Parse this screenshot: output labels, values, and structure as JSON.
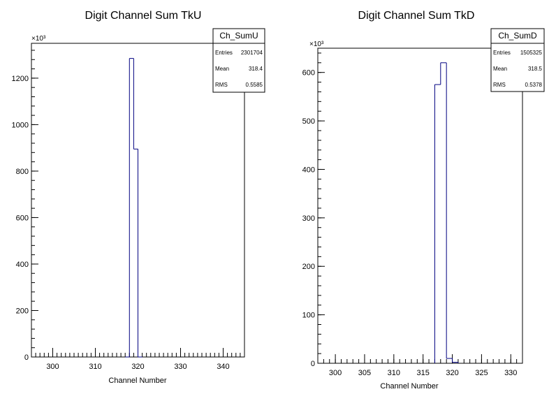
{
  "chart_data": [
    {
      "type": "bar",
      "title": "Digit Channel Sum TkU",
      "xlabel": "Channel Number",
      "ylabel": "",
      "y_multiplier": "×10³",
      "xlim": [
        295,
        345
      ],
      "ylim": [
        0,
        1350
      ],
      "x_ticks": [
        300,
        310,
        320,
        330,
        340
      ],
      "y_ticks": [
        0,
        200,
        400,
        600,
        800,
        1000,
        1200
      ],
      "bins": [
        {
          "x0": 317,
          "x1": 318,
          "value": 0
        },
        {
          "x0": 318,
          "x1": 319,
          "value": 1285
        },
        {
          "x0": 319,
          "x1": 320,
          "value": 895
        },
        {
          "x0": 320,
          "x1": 321,
          "value": 0
        }
      ],
      "stats": {
        "name": "Ch_SumU",
        "rows": [
          {
            "label": "Entries",
            "value": "2301704"
          },
          {
            "label": "Mean",
            "value": "318.4"
          },
          {
            "label": "RMS",
            "value": "0.5585"
          }
        ]
      },
      "line_color": "#000080"
    },
    {
      "type": "bar",
      "title": "Digit Channel Sum TkD",
      "xlabel": "Channel Number",
      "ylabel": "",
      "y_multiplier": "×10³",
      "xlim": [
        297,
        332
      ],
      "ylim": [
        0,
        650
      ],
      "x_ticks": [
        300,
        305,
        310,
        315,
        320,
        325,
        330
      ],
      "y_ticks": [
        0,
        100,
        200,
        300,
        400,
        500,
        600
      ],
      "bins": [
        {
          "x0": 317,
          "x1": 318,
          "value": 575
        },
        {
          "x0": 318,
          "x1": 319,
          "value": 620
        },
        {
          "x0": 319,
          "x1": 320,
          "value": 10
        },
        {
          "x0": 320,
          "x1": 321,
          "value": 2
        }
      ],
      "stats": {
        "name": "Ch_SumD",
        "rows": [
          {
            "label": "Entries",
            "value": "1505325"
          },
          {
            "label": "Mean",
            "value": "318.5"
          },
          {
            "label": "RMS",
            "value": "0.5378"
          }
        ]
      },
      "line_color": "#000080"
    }
  ]
}
